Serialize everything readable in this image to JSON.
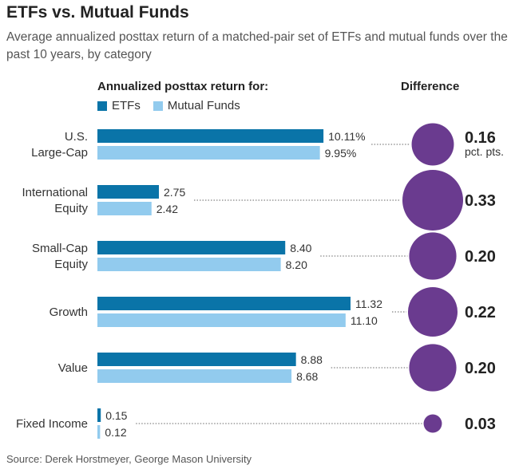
{
  "title": "ETFs vs. Mutual Funds",
  "subtitle": "Average annualized posttax return of a matched-pair set of ETFs and mutual funds over the past 10 years, by category",
  "legend": {
    "title": "Annualized posttax return for:",
    "etf_label": "ETFs",
    "mf_label": "Mutual Funds"
  },
  "difference_title": "Difference",
  "source": "Source: Derek Horstmeyer, George Mason University",
  "colors": {
    "etf": "#0a74a8",
    "mf": "#92cbee",
    "bubble": "#6a3b8f",
    "dots": "#666666"
  },
  "chart_data": {
    "type": "bar",
    "orientation": "horizontal",
    "categories": [
      {
        "lines": [
          "U.S.",
          "Large-Cap"
        ]
      },
      {
        "lines": [
          "International",
          "Equity"
        ]
      },
      {
        "lines": [
          "Small-Cap",
          "Equity"
        ]
      },
      {
        "lines": [
          "Growth"
        ]
      },
      {
        "lines": [
          "Value"
        ]
      },
      {
        "lines": [
          "Fixed Income"
        ]
      }
    ],
    "series": [
      {
        "name": "ETFs",
        "values": [
          10.11,
          2.75,
          8.4,
          11.32,
          8.88,
          0.15
        ],
        "labels": [
          "10.11%",
          "2.75",
          "8.40",
          "11.32",
          "8.88",
          "0.15"
        ]
      },
      {
        "name": "Mutual Funds",
        "values": [
          9.95,
          2.42,
          8.2,
          11.1,
          8.68,
          0.12
        ],
        "labels": [
          "9.95%",
          "2.42",
          "8.20",
          "11.10",
          "8.68",
          "0.12"
        ]
      }
    ],
    "difference": {
      "values": [
        0.16,
        0.33,
        0.2,
        0.22,
        0.2,
        0.03
      ],
      "labels": [
        "0.16",
        "0.33",
        "0.20",
        "0.22",
        "0.20",
        "0.03"
      ],
      "unit": "pct. pts."
    },
    "xlim": [
      0,
      11.32
    ]
  }
}
